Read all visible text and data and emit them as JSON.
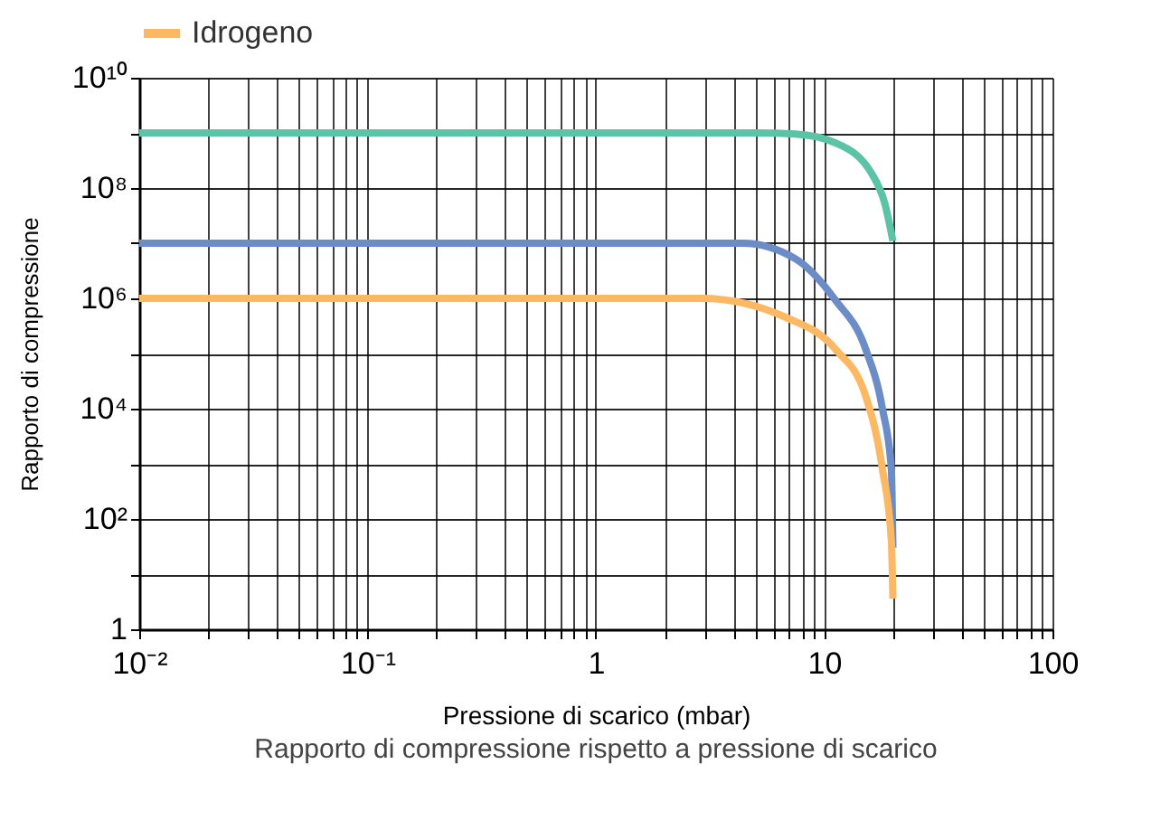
{
  "chart_data": {
    "type": "line",
    "title": "Rapporto di compressione rispetto a pressione di scarico",
    "xlabel": "Pressione di scarico (mbar)",
    "ylabel": "Rapporto di compressione",
    "log": "xy",
    "grid": true,
    "legend": "top left",
    "line_style": "solid",
    "xlim": [
      0.01,
      100
    ],
    "ylim": [
      1,
      10000000000
    ],
    "xticks": [
      {
        "value": 0.01,
        "label": "10⁻²"
      },
      {
        "value": 0.02,
        "label": null
      },
      {
        "value": 0.03,
        "label": null
      },
      {
        "value": 0.04,
        "label": null
      },
      {
        "value": 0.05,
        "label": null
      },
      {
        "value": 0.06,
        "label": null
      },
      {
        "value": 0.07,
        "label": null
      },
      {
        "value": 0.08,
        "label": null
      },
      {
        "value": 0.09,
        "label": null
      },
      {
        "value": 0.1,
        "label": "10⁻¹"
      },
      {
        "value": 0.2,
        "label": null
      },
      {
        "value": 0.3,
        "label": null
      },
      {
        "value": 0.4,
        "label": null
      },
      {
        "value": 0.5,
        "label": null
      },
      {
        "value": 0.6,
        "label": null
      },
      {
        "value": 0.7,
        "label": null
      },
      {
        "value": 0.8,
        "label": null
      },
      {
        "value": 0.9,
        "label": null
      },
      1,
      {
        "value": 2,
        "label": null
      },
      {
        "value": 3,
        "label": null
      },
      {
        "value": 4,
        "label": null
      },
      {
        "value": 5,
        "label": null
      },
      {
        "value": 6,
        "label": null
      },
      {
        "value": 7,
        "label": null
      },
      {
        "value": 8,
        "label": null
      },
      {
        "value": 9,
        "label": null
      },
      10,
      {
        "value": 20,
        "label": null
      },
      {
        "value": 30,
        "label": null
      },
      {
        "value": 40,
        "label": null
      },
      {
        "value": 50,
        "label": null
      },
      {
        "value": 60,
        "label": null
      },
      {
        "value": 70,
        "label": null
      },
      {
        "value": 80,
        "label": null
      },
      {
        "value": 90,
        "label": null
      },
      100
    ],
    "yticks": [
      1,
      {
        "value": 10,
        "label": null
      },
      {
        "value": 100,
        "label": "10²"
      },
      {
        "value": 1000,
        "label": null
      },
      {
        "value": 10000,
        "label": "10⁴"
      },
      {
        "value": 100000,
        "label": null
      },
      {
        "value": 1000000,
        "label": "10⁶"
      },
      {
        "value": 10000000,
        "label": null
      },
      {
        "value": 100000000,
        "label": "10⁸"
      },
      {
        "value": 1000000000,
        "label": null
      },
      {
        "value": 10000000000,
        "label": "10¹⁰"
      }
    ],
    "series": [
      {
        "color": "#5bc4a6",
        "x": [
          0.01,
          1,
          5,
          7.5,
          11.2,
          16.2,
          18.5,
          20
        ],
        "values": [
          1000000000,
          1000000000,
          1000000000,
          950000000,
          660000000,
          180000000,
          50000000,
          11000000
        ]
      },
      {
        "color": "#6b8cc7",
        "x": [
          0.01,
          1,
          4.4,
          7.5,
          11.2,
          15.2,
          18,
          19.7,
          20
        ],
        "values": [
          10000000,
          10000000,
          10000000,
          5200000,
          930000,
          120000,
          10000,
          800,
          30
        ]
      },
      {
        "name": "Idrogeno",
        "color": "#fdb863",
        "x": [
          0.01,
          1,
          2.9,
          6.9,
          11.2,
          15.2,
          18,
          19.7,
          20
        ],
        "values": [
          1000000,
          1000000,
          1000000,
          440000,
          120000,
          17000,
          800,
          40,
          3.6
        ]
      }
    ]
  }
}
